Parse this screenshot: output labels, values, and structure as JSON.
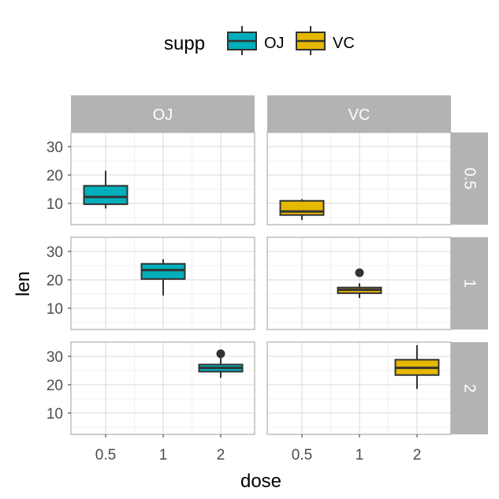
{
  "chart_data": {
    "type": "box",
    "xlabel": "dose",
    "ylabel": "len",
    "x_categories": [
      "0.5",
      "1",
      "2"
    ],
    "y_ticks": [
      10,
      20,
      30
    ],
    "ylim": [
      2.5,
      35
    ],
    "facet_columns": [
      "OJ",
      "VC"
    ],
    "facet_rows": [
      "0.5",
      "1",
      "2"
    ],
    "legend": {
      "title": "supp",
      "position": "top",
      "entries": [
        {
          "label": "OJ",
          "color": "#00AFBB"
        },
        {
          "label": "VC",
          "color": "#E7B800"
        }
      ]
    },
    "colors": {
      "OJ": "#00AFBB",
      "VC": "#E7B800"
    },
    "grid": true,
    "panels": [
      {
        "row": "0.5",
        "col": "OJ",
        "supp": "OJ",
        "dose": "0.5",
        "min": 8.2,
        "q1": 9.7,
        "median": 12.25,
        "q3": 16.2,
        "max": 21.5,
        "outliers": []
      },
      {
        "row": "0.5",
        "col": "VC",
        "supp": "VC",
        "dose": "0.5",
        "min": 4.2,
        "q1": 5.9,
        "median": 7.15,
        "q3": 10.9,
        "max": 11.5,
        "outliers": []
      },
      {
        "row": "1",
        "col": "OJ",
        "supp": "OJ",
        "dose": "1",
        "min": 14.5,
        "q1": 20.3,
        "median": 23.45,
        "q3": 25.65,
        "max": 27.3,
        "outliers": []
      },
      {
        "row": "1",
        "col": "VC",
        "supp": "VC",
        "dose": "1",
        "min": 13.6,
        "q1": 15.3,
        "median": 16.5,
        "q3": 17.3,
        "max": 18.8,
        "outliers": [
          22.5
        ]
      },
      {
        "row": "2",
        "col": "OJ",
        "supp": "OJ",
        "dose": "2",
        "min": 22.4,
        "q1": 24.6,
        "median": 25.95,
        "q3": 27.1,
        "max": 30.9,
        "outliers": [
          30.9
        ]
      },
      {
        "row": "2",
        "col": "VC",
        "supp": "VC",
        "dose": "2",
        "min": 18.5,
        "q1": 23.4,
        "median": 25.95,
        "q3": 28.8,
        "max": 33.9,
        "outliers": []
      }
    ]
  }
}
